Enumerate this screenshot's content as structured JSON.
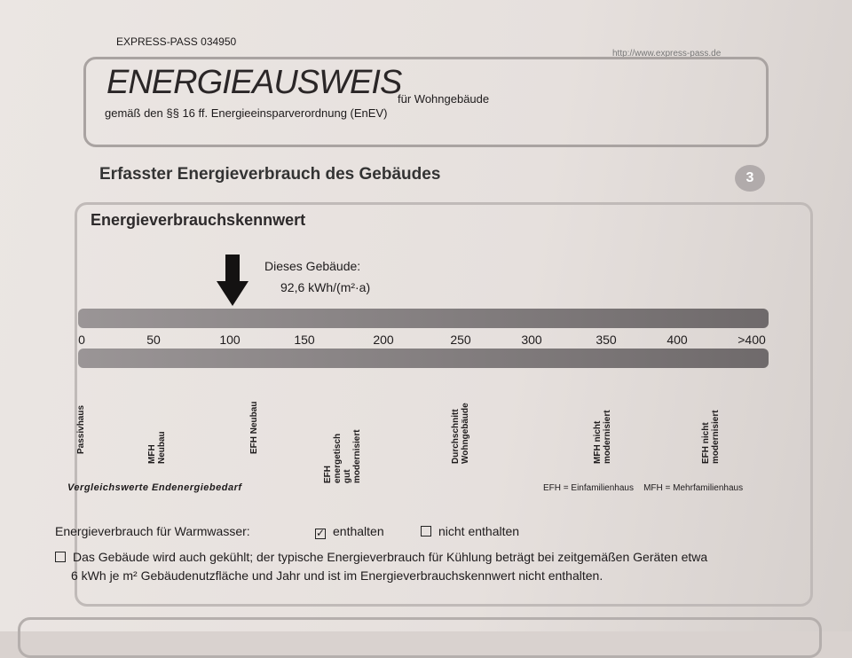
{
  "header": {
    "pass_id": "EXPRESS-PASS 034950",
    "url": "http://www.express-pass.de",
    "title": "ENERGIEAUSWEIS",
    "title_suffix": "für Wohngebäude",
    "subtitle": "gemäß den §§ 16 ff. Energieeinsparverordnung (EnEV)"
  },
  "section": {
    "title": "Erfasster Energieverbrauch des Gebäudes",
    "number": "3"
  },
  "panel": {
    "title": "Energieverbrauchskennwert",
    "building_label": "Dieses Gebäude:",
    "building_value": "92,6  kWh/(m²·a)",
    "value": 92.6,
    "scale": [
      "0",
      "50",
      "100",
      "150",
      "200",
      "250",
      "300",
      "350",
      "400",
      ">400"
    ],
    "comparisons": [
      "Passivhaus",
      "MFH Neubau",
      "EFH Neubau",
      "EFH energetisch gut modernisiert",
      "Durchschnitt Wohngebäude",
      "MFH nicht modernisiert",
      "EFH nicht modernisiert"
    ],
    "comparison_caption": "Vergleichswerte Endenergiebedarf",
    "legend": "EFH = Einfamilienhaus    MFH = Mehrfamilienhaus",
    "warmwater_label": "Energieverbrauch für Warmwasser:",
    "included": "enthalten",
    "included_checked": true,
    "not_included": "nicht enthalten",
    "not_included_checked": false,
    "cooling_text_1": "Das Gebäude wird auch gekühlt; der typische Energieverbrauch für Kühlung beträgt bei zeitgemäßen Geräten etwa",
    "cooling_text_2": "6 kWh je m² Gebäudenutzfläche und Jahr und ist im Energieverbrauchskennwert nicht enthalten.",
    "cooling_checked": false
  }
}
